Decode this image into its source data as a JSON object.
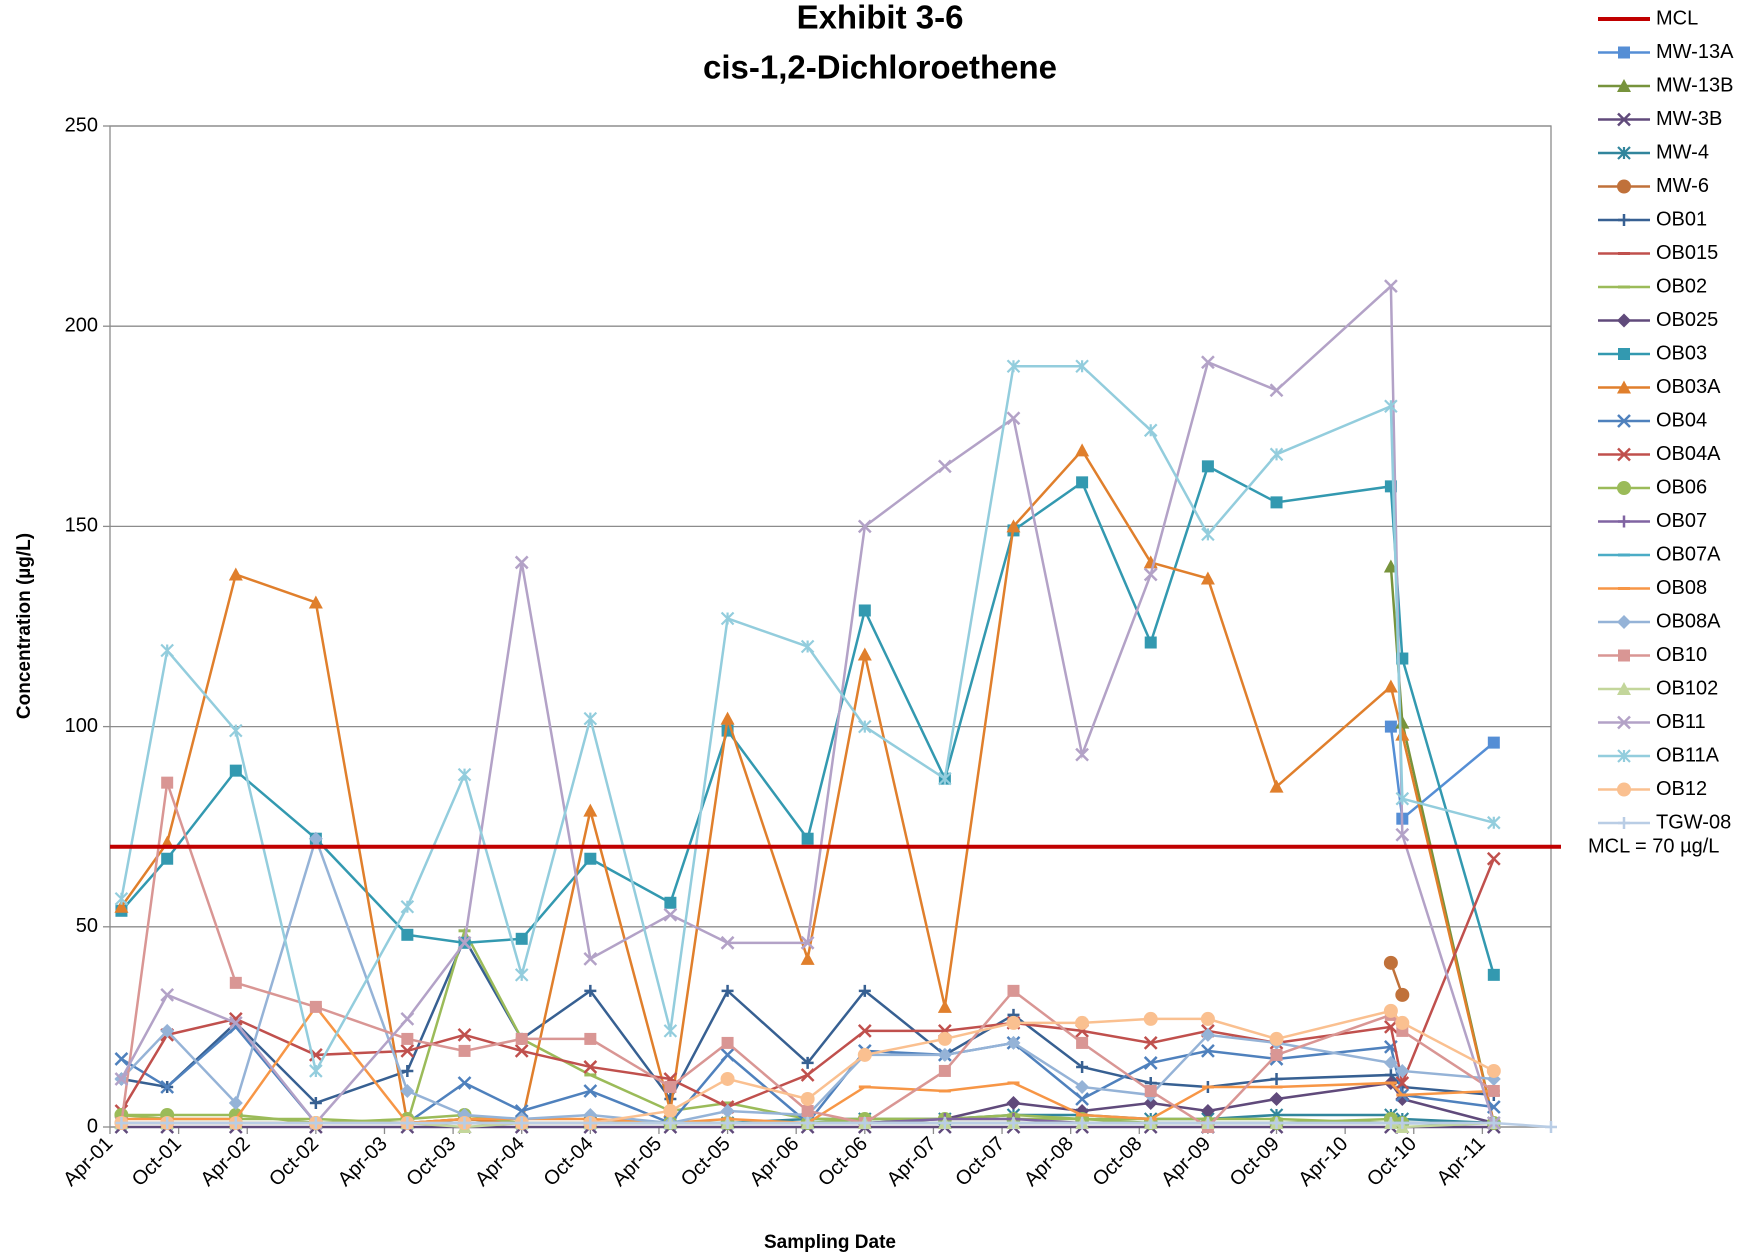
{
  "chart_data": {
    "type": "line",
    "title": [
      "Exhibit 3-6",
      "cis-1,2-Dichloroethene"
    ],
    "x_label": "Sampling Date",
    "y_label": "Concentration (µg/L)",
    "reference_line": {
      "name": "MCL",
      "value": 70,
      "color": "#c00000",
      "label": "MCL = 70 µg/L"
    },
    "x": [
      "2001-05",
      "2001-09",
      "2002-03",
      "2002-10",
      "2003-06",
      "2003-11",
      "2004-04",
      "2004-10",
      "2005-05",
      "2005-10",
      "2006-05",
      "2006-10",
      "2007-05",
      "2007-11",
      "2008-05",
      "2008-11",
      "2009-04",
      "2009-10",
      "2010-08",
      "2010-09",
      "2011-05",
      "2011-10"
    ],
    "xlim": [
      "2001-04",
      "2011-10"
    ],
    "xticks": [
      {
        "value": "2001-04",
        "label": "Apr-01"
      },
      {
        "value": "2001-10",
        "label": "Oct-01"
      },
      {
        "value": "2002-04",
        "label": "Apr-02"
      },
      {
        "value": "2002-10",
        "label": "Oct-02"
      },
      {
        "value": "2003-04",
        "label": "Apr-03"
      },
      {
        "value": "2003-10",
        "label": "Oct-03"
      },
      {
        "value": "2004-04",
        "label": "Apr-04"
      },
      {
        "value": "2004-10",
        "label": "Oct-04"
      },
      {
        "value": "2005-04",
        "label": "Apr-05"
      },
      {
        "value": "2005-10",
        "label": "Oct-05"
      },
      {
        "value": "2006-04",
        "label": "Apr-06"
      },
      {
        "value": "2006-10",
        "label": "Oct-06"
      },
      {
        "value": "2007-04",
        "label": "Apr-07"
      },
      {
        "value": "2007-10",
        "label": "Oct-07"
      },
      {
        "value": "2008-04",
        "label": "Apr-08"
      },
      {
        "value": "2008-10",
        "label": "Oct-08"
      },
      {
        "value": "2009-04",
        "label": "Apr-09"
      },
      {
        "value": "2009-10",
        "label": "Oct-09"
      },
      {
        "value": "2010-04",
        "label": "Apr-10"
      },
      {
        "value": "2010-10",
        "label": "Oct-10"
      },
      {
        "value": "2011-04",
        "label": "Apr-11"
      }
    ],
    "ylim": [
      0,
      250
    ],
    "yticks": [
      0,
      50,
      100,
      150,
      200,
      250
    ],
    "grid": true,
    "legend": "right",
    "series": [
      {
        "name": "MW-13A",
        "color": "#558ed5",
        "marker": "square",
        "values": [
          null,
          null,
          null,
          null,
          null,
          null,
          null,
          null,
          null,
          null,
          null,
          null,
          null,
          null,
          null,
          null,
          null,
          null,
          100,
          77,
          96,
          null
        ]
      },
      {
        "name": "MW-13B",
        "color": "#77933c",
        "marker": "triangle",
        "values": [
          null,
          null,
          null,
          null,
          null,
          null,
          null,
          null,
          null,
          null,
          null,
          null,
          null,
          null,
          null,
          null,
          null,
          null,
          140,
          101,
          1,
          null
        ]
      },
      {
        "name": "MW-3B",
        "color": "#604a7b",
        "marker": "x",
        "values": [
          0,
          0,
          0,
          0,
          0,
          0,
          0,
          0,
          0,
          0,
          0,
          0,
          0,
          0,
          0,
          0,
          0,
          0,
          0,
          0,
          0,
          null
        ]
      },
      {
        "name": "MW-4",
        "color": "#31859c",
        "marker": "star",
        "values": [
          1,
          1,
          1,
          1,
          1,
          2,
          1,
          1,
          1,
          1,
          2,
          2,
          2,
          3,
          3,
          2,
          2,
          3,
          3,
          2,
          1,
          null
        ]
      },
      {
        "name": "MW-6",
        "color": "#c0713a",
        "marker": "circle",
        "values": [
          null,
          null,
          null,
          null,
          null,
          null,
          null,
          null,
          null,
          null,
          null,
          null,
          null,
          null,
          null,
          null,
          null,
          null,
          41,
          33,
          null,
          null
        ]
      },
      {
        "name": "OB01",
        "color": "#376092",
        "marker": "plus",
        "values": [
          12,
          10,
          26,
          6,
          14,
          47,
          22,
          34,
          7,
          34,
          16,
          34,
          18,
          28,
          15,
          11,
          10,
          12,
          13,
          10,
          8,
          null
        ]
      },
      {
        "name": "OB015",
        "color": "#c0504d",
        "marker": "dash",
        "values": [
          1,
          1,
          1,
          1,
          1,
          1,
          1,
          1,
          1,
          1,
          1,
          1,
          1,
          1,
          1,
          1,
          1,
          1,
          1,
          1,
          1,
          null
        ]
      },
      {
        "name": "OB02",
        "color": "#9bbb59",
        "marker": "dash",
        "values": [
          3,
          2,
          2,
          2,
          1,
          49,
          22,
          13,
          4,
          6,
          2,
          2,
          2,
          3,
          2,
          2,
          2,
          2,
          1,
          1,
          1,
          null
        ]
      },
      {
        "name": "OB025",
        "color": "#604a7b",
        "marker": "diamond",
        "values": [
          1,
          1,
          1,
          1,
          1,
          1,
          1,
          1,
          1,
          1,
          1,
          1,
          2,
          6,
          4,
          6,
          4,
          7,
          11,
          7,
          1,
          null
        ]
      },
      {
        "name": "OB03",
        "color": "#3399b0",
        "marker": "square",
        "values": [
          54,
          67,
          89,
          72,
          48,
          46,
          47,
          67,
          56,
          99,
          72,
          129,
          87,
          149,
          161,
          121,
          165,
          156,
          160,
          117,
          38,
          null
        ]
      },
      {
        "name": "OB03A",
        "color": "#e07f2c",
        "marker": "triangle",
        "values": [
          55,
          71,
          138,
          131,
          1,
          2,
          1,
          79,
          4,
          102,
          42,
          118,
          30,
          150,
          169,
          141,
          137,
          85,
          110,
          98,
          1,
          null
        ]
      },
      {
        "name": "OB04",
        "color": "#4f81bd",
        "marker": "x",
        "values": [
          17,
          10,
          25,
          1,
          1,
          11,
          4,
          9,
          1,
          18,
          1,
          19,
          18,
          21,
          7,
          16,
          19,
          17,
          20,
          8,
          5,
          null
        ]
      },
      {
        "name": "OB04A",
        "color": "#c0504d",
        "marker": "x",
        "values": [
          4,
          23,
          27,
          18,
          19,
          23,
          19,
          15,
          12,
          5,
          13,
          24,
          24,
          26,
          24,
          21,
          24,
          21,
          25,
          11,
          67,
          null
        ]
      },
      {
        "name": "OB06",
        "color": "#9bbb59",
        "marker": "circle",
        "values": [
          3,
          3,
          3,
          1,
          2,
          3,
          1,
          1,
          1,
          1,
          1,
          2,
          2,
          2,
          2,
          1,
          1,
          1,
          2,
          1,
          1,
          null
        ]
      },
      {
        "name": "OB07",
        "color": "#8064a2",
        "marker": "plus",
        "values": [
          1,
          1,
          1,
          1,
          1,
          1,
          1,
          1,
          1,
          1,
          1,
          1,
          2,
          2,
          1,
          1,
          1,
          1,
          1,
          1,
          1,
          null
        ]
      },
      {
        "name": "OB07A",
        "color": "#4bacc6",
        "marker": "dash",
        "values": [
          1,
          1,
          1,
          1,
          1,
          1,
          1,
          1,
          1,
          1,
          1,
          1,
          1,
          1,
          1,
          1,
          1,
          1,
          1,
          1,
          1,
          null
        ]
      },
      {
        "name": "OB08",
        "color": "#f79646",
        "marker": "dash",
        "values": [
          2,
          2,
          2,
          30,
          1,
          2,
          2,
          2,
          1,
          2,
          1,
          10,
          9,
          11,
          3,
          2,
          10,
          10,
          11,
          8,
          9,
          null
        ]
      },
      {
        "name": "OB08A",
        "color": "#95b3d7",
        "marker": "diamond",
        "values": [
          12,
          24,
          6,
          72,
          9,
          3,
          2,
          3,
          1,
          4,
          3,
          18,
          18,
          21,
          10,
          8,
          23,
          21,
          16,
          14,
          12,
          null
        ]
      },
      {
        "name": "OB10",
        "color": "#d99694",
        "marker": "square",
        "values": [
          1,
          86,
          36,
          30,
          22,
          19,
          22,
          22,
          10,
          21,
          4,
          1,
          14,
          34,
          21,
          9,
          0,
          18,
          28,
          24,
          9,
          null
        ]
      },
      {
        "name": "OB102",
        "color": "#c3d69b",
        "marker": "triangle",
        "values": [
          1,
          1,
          1,
          1,
          1,
          0,
          1,
          1,
          1,
          1,
          1,
          1,
          1,
          1,
          1,
          1,
          1,
          1,
          1,
          0,
          1,
          null
        ]
      },
      {
        "name": "OB11",
        "color": "#b3a2c7",
        "marker": "x",
        "values": [
          12,
          33,
          26,
          1,
          27,
          46,
          141,
          42,
          53,
          46,
          46,
          150,
          165,
          177,
          93,
          138,
          191,
          184,
          210,
          73,
          1,
          null
        ]
      },
      {
        "name": "OB11A",
        "color": "#93cddd",
        "marker": "star",
        "values": [
          57,
          119,
          99,
          14,
          55,
          88,
          38,
          102,
          24,
          127,
          120,
          100,
          87,
          190,
          190,
          174,
          148,
          168,
          180,
          82,
          76,
          null
        ]
      },
      {
        "name": "OB12",
        "color": "#fac090",
        "marker": "circle",
        "values": [
          1,
          1,
          1,
          1,
          1,
          1,
          1,
          1,
          4,
          12,
          7,
          18,
          22,
          26,
          26,
          27,
          27,
          22,
          29,
          26,
          14,
          null
        ]
      },
      {
        "name": "TGW-08",
        "color": "#b9cde5",
        "marker": "plus",
        "values": [
          1,
          1,
          1,
          1,
          1,
          1,
          1,
          1,
          1,
          1,
          1,
          1,
          1,
          1,
          1,
          1,
          1,
          1,
          1,
          1,
          1,
          0
        ]
      }
    ]
  }
}
